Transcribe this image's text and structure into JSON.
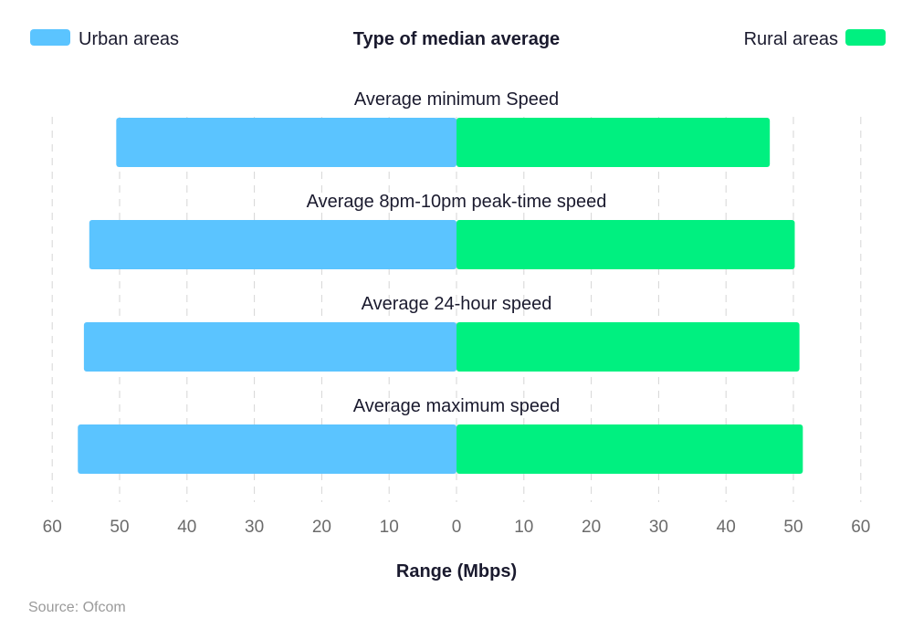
{
  "chart_data": {
    "type": "bar",
    "orientation": "horizontal-diverging",
    "title": "Type of median average",
    "xlabel": "Range (Mbps)",
    "source": "Source: Ofcom",
    "categories": [
      "Average minimum Speed",
      "Average 8pm-10pm peak-time speed",
      "Average 24-hour speed",
      "Average maximum speed"
    ],
    "series": [
      {
        "name": "Urban areas",
        "side": "left",
        "color": "#5bc4ff",
        "values": [
          50.5,
          54.5,
          55.3,
          56.2
        ]
      },
      {
        "name": "Rural areas",
        "side": "right",
        "color": "#00f080",
        "values": [
          46.5,
          50.2,
          50.9,
          51.4
        ]
      }
    ],
    "xlim": [
      -60,
      60
    ],
    "ticks": [
      "60",
      "50",
      "40",
      "30",
      "20",
      "10",
      "0",
      "10",
      "20",
      "30",
      "40",
      "50",
      "60"
    ],
    "grid": true,
    "legend_placement": "top"
  }
}
